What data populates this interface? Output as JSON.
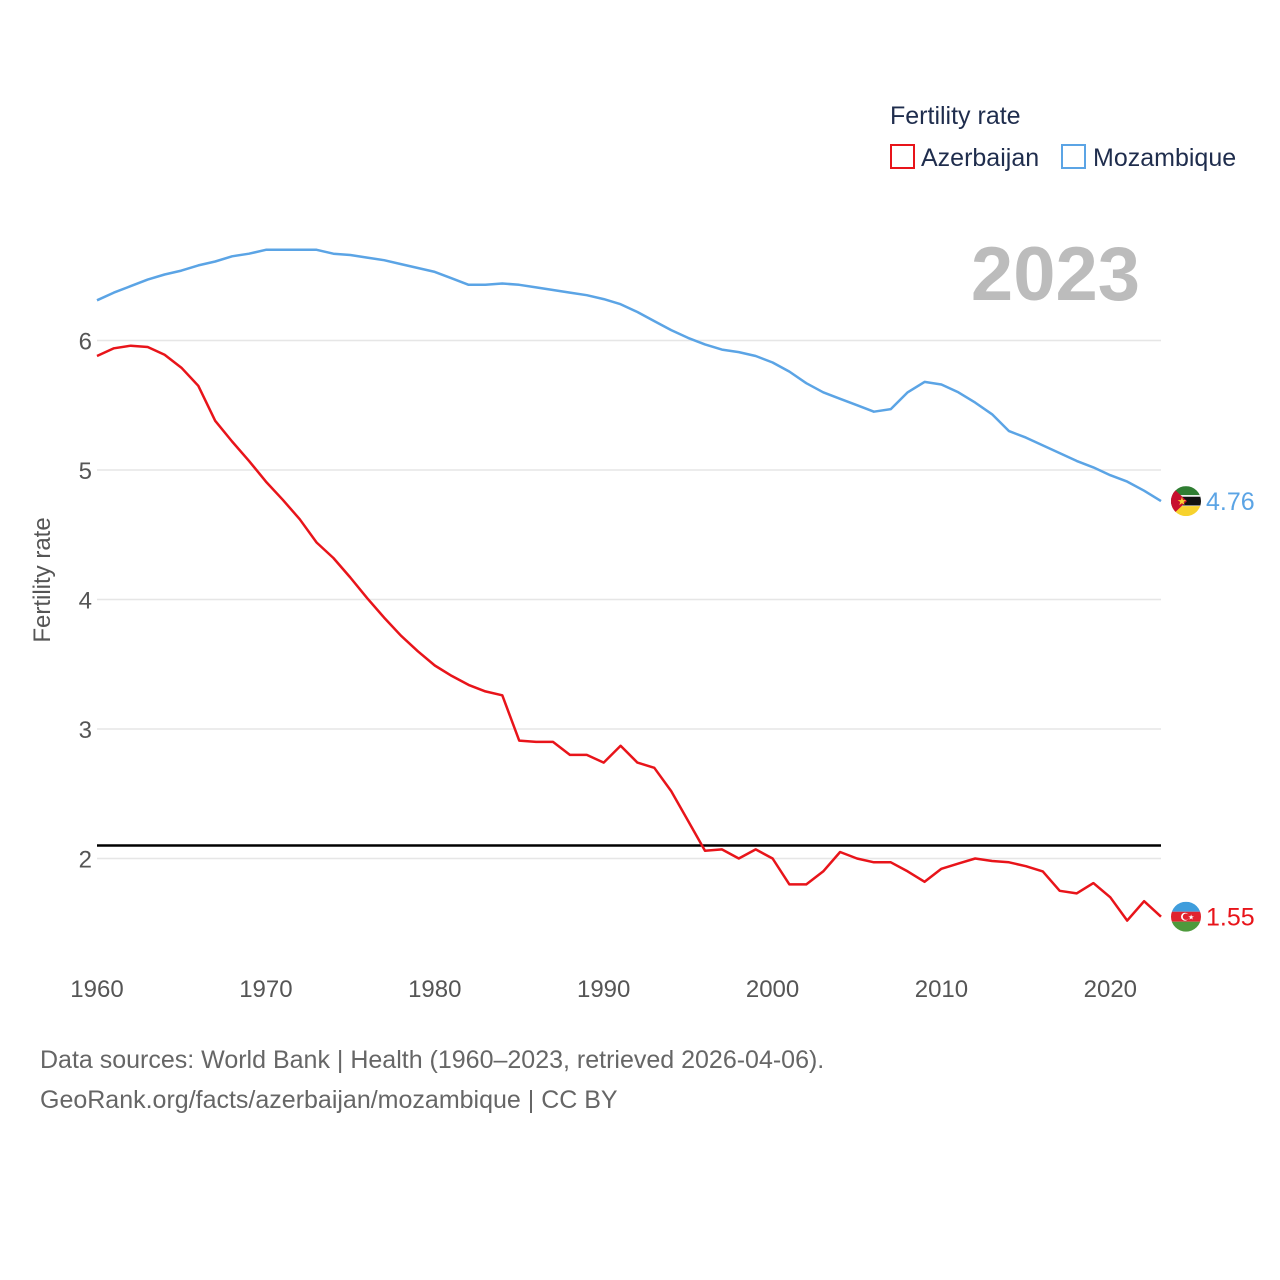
{
  "chart_data": {
    "type": "line",
    "title": "Fertility rate",
    "ylabel": "Fertility rate",
    "xlabel": "",
    "year_label": "2023",
    "xlim": [
      1960,
      2023
    ],
    "ylim": [
      1.1,
      7.0
    ],
    "x_ticks": [
      1960,
      1970,
      1980,
      1990,
      2000,
      2010,
      2020
    ],
    "y_ticks": [
      2,
      3,
      4,
      5,
      6
    ],
    "reference_line": 2.1,
    "x": [
      1960,
      1961,
      1962,
      1963,
      1964,
      1965,
      1966,
      1967,
      1968,
      1969,
      1970,
      1971,
      1972,
      1973,
      1974,
      1975,
      1976,
      1977,
      1978,
      1979,
      1980,
      1981,
      1982,
      1983,
      1984,
      1985,
      1986,
      1987,
      1988,
      1989,
      1990,
      1991,
      1992,
      1993,
      1994,
      1995,
      1996,
      1997,
      1998,
      1999,
      2000,
      2001,
      2002,
      2003,
      2004,
      2005,
      2006,
      2007,
      2008,
      2009,
      2010,
      2011,
      2012,
      2013,
      2014,
      2015,
      2016,
      2017,
      2018,
      2019,
      2020,
      2021,
      2022,
      2023
    ],
    "series": [
      {
        "name": "Azerbaijan",
        "color": "#e8141a",
        "end_label": "1.55",
        "values": [
          5.88,
          5.94,
          5.96,
          5.95,
          5.89,
          5.79,
          5.65,
          5.38,
          5.22,
          5.07,
          4.91,
          4.77,
          4.62,
          4.44,
          4.32,
          4.17,
          4.01,
          3.86,
          3.72,
          3.6,
          3.49,
          3.41,
          3.34,
          3.29,
          3.26,
          2.91,
          2.9,
          2.9,
          2.8,
          2.8,
          2.74,
          2.87,
          2.74,
          2.7,
          2.52,
          2.29,
          2.06,
          2.07,
          2.0,
          2.07,
          2.0,
          1.8,
          1.8,
          1.9,
          2.05,
          2.0,
          1.97,
          1.97,
          1.9,
          1.82,
          1.92,
          1.96,
          2.0,
          1.98,
          1.97,
          1.94,
          1.9,
          1.75,
          1.73,
          1.81,
          1.7,
          1.52,
          1.67,
          1.55
        ]
      },
      {
        "name": "Mozambique",
        "color": "#5ba4e5",
        "end_label": "4.76",
        "values": [
          6.31,
          6.37,
          6.42,
          6.47,
          6.51,
          6.54,
          6.58,
          6.61,
          6.65,
          6.67,
          6.7,
          6.7,
          6.7,
          6.7,
          6.67,
          6.66,
          6.64,
          6.62,
          6.59,
          6.56,
          6.53,
          6.48,
          6.43,
          6.43,
          6.44,
          6.43,
          6.41,
          6.39,
          6.37,
          6.35,
          6.32,
          6.28,
          6.22,
          6.15,
          6.08,
          6.02,
          5.97,
          5.93,
          5.91,
          5.88,
          5.83,
          5.76,
          5.67,
          5.6,
          5.55,
          5.5,
          5.45,
          5.47,
          5.6,
          5.68,
          5.66,
          5.6,
          5.52,
          5.43,
          5.3,
          5.25,
          5.19,
          5.13,
          5.07,
          5.02,
          4.96,
          4.91,
          4.84,
          4.76
        ]
      }
    ],
    "legend": [
      "Azerbaijan",
      "Mozambique"
    ]
  },
  "source": {
    "line1": "Data sources: World Bank | Health (1960–2023, retrieved 2026-04-06).",
    "line2": "GeoRank.org/facts/azerbaijan/mozambique | CC BY"
  },
  "colors": {
    "azerbaijan": "#e8141a",
    "mozambique": "#5ba4e5",
    "reference": "#000000",
    "grid": "#e6e6e6"
  },
  "icons": {
    "azerbaijan_flag": "azerbaijan-flag-icon",
    "mozambique_flag": "mozambique-flag-icon"
  }
}
